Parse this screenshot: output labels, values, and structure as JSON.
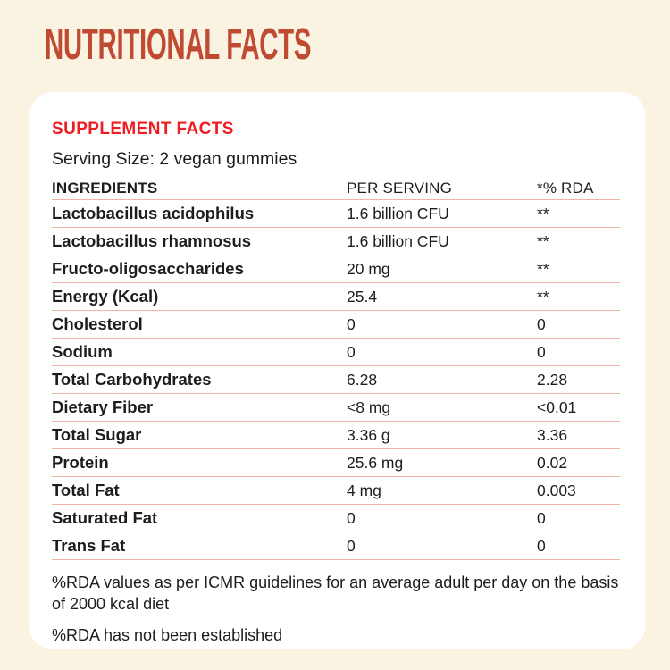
{
  "page": {
    "title": "NUTRITIONAL FACTS"
  },
  "card": {
    "heading": "SUPPLEMENT FACTS",
    "serving_size": "Serving Size: 2 vegan gummies",
    "table": {
      "headers": [
        "INGREDIENTS",
        "PER SERVING",
        "*% RDA"
      ],
      "rows": [
        [
          "Lactobacillus acidophilus",
          "1.6 billion CFU",
          "**"
        ],
        [
          "Lactobacillus rhamnosus",
          "1.6 billion CFU",
          "**"
        ],
        [
          "Fructo-oligosaccharides",
          "20 mg",
          "**"
        ],
        [
          "Energy (Kcal)",
          "25.4",
          "**"
        ],
        [
          "Cholesterol",
          "0",
          "0"
        ],
        [
          "Sodium",
          "0",
          "0"
        ],
        [
          "Total Carbohydrates",
          "6.28",
          "2.28"
        ],
        [
          "Dietary Fiber",
          "<8 mg",
          "<0.01"
        ],
        [
          "Total Sugar",
          "3.36 g",
          "3.36"
        ],
        [
          "Protein",
          "25.6 mg",
          "0.02"
        ],
        [
          "Total Fat",
          "4 mg",
          "0.003"
        ],
        [
          "Saturated Fat",
          "0",
          "0"
        ],
        [
          "Trans Fat",
          "0",
          "0"
        ]
      ]
    },
    "footnotes": [
      "%RDA values as per ICMR guidelines for an average adult per day on the basis of 2000 kcal diet",
      "%RDA has not been established"
    ]
  },
  "colors": {
    "page_bg": "#faf3e2",
    "card_bg": "#ffffff",
    "title_red": "#c04b33",
    "accent_red": "#ee1d24",
    "divider_pink": "#f1b2aa",
    "text_dark": "#1d1d1d"
  }
}
